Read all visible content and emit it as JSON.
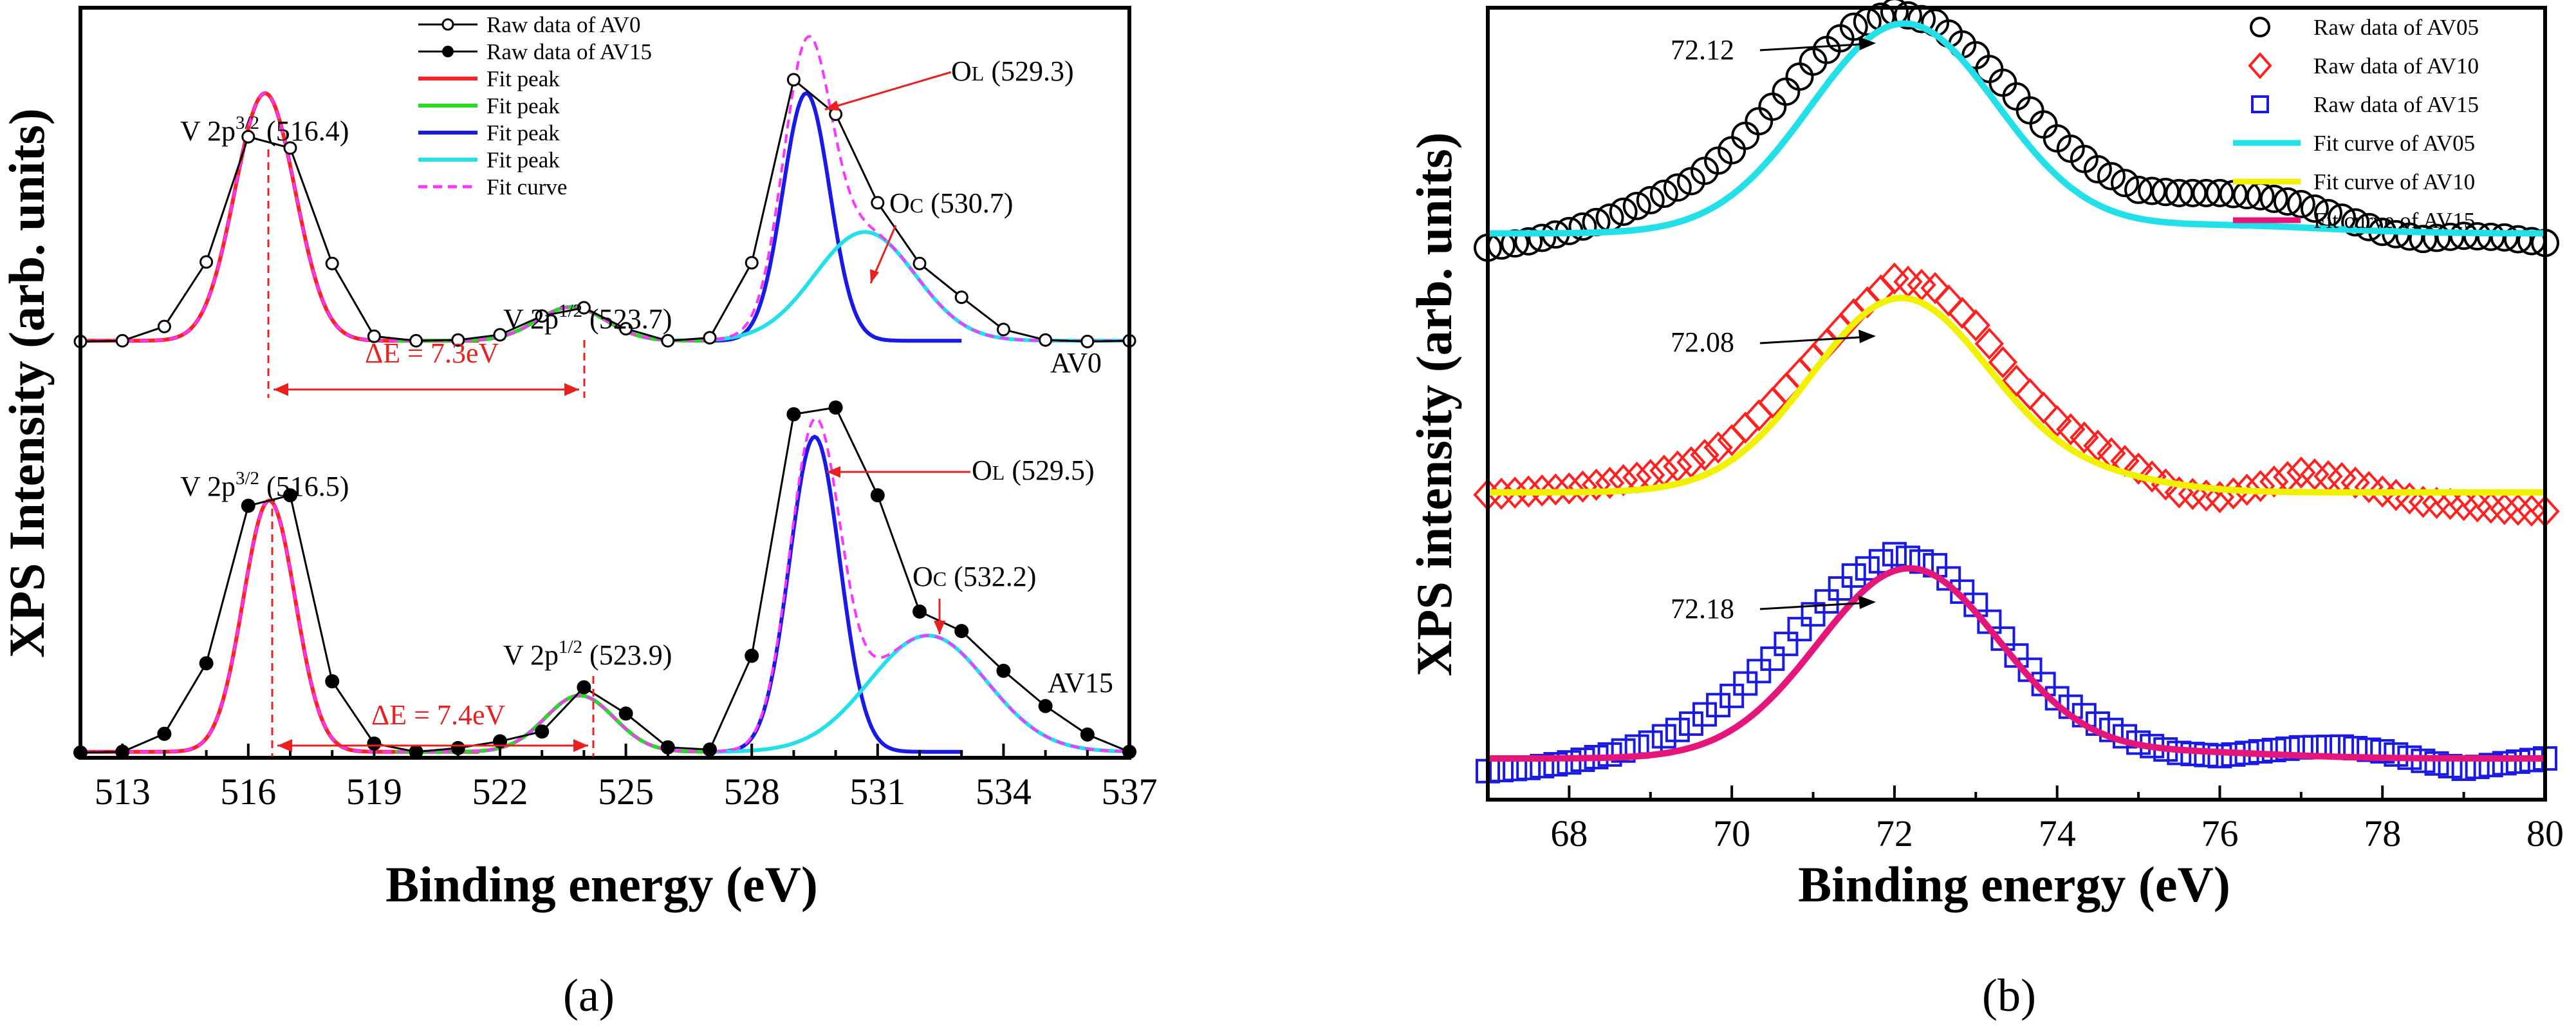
{
  "panel_labels": {
    "a": "(a)",
    "b": "(b)"
  },
  "colors": {
    "red": "#ff2020",
    "green": "#22dd22",
    "blue": "#1a1ae6",
    "cyan": "#22e0e8",
    "magenta": "#ff33ff",
    "yellow": "#f2f200",
    "pink": "#e6157a",
    "ann_red": "#e82020"
  },
  "chart_data": [
    {
      "id": "a",
      "type": "line",
      "title": "",
      "xlabel": "Binding energy (eV)",
      "ylabel": "XPS Intensity (arb. units)",
      "xlim": [
        512,
        537
      ],
      "ylim": [
        0,
        1
      ],
      "x_ticks": [
        513,
        516,
        519,
        522,
        525,
        528,
        531,
        534,
        537
      ],
      "legend": {
        "position": "top-center",
        "entries": [
          {
            "label": "Raw data of AV0",
            "style": "open-circle-line",
            "color": "#000000"
          },
          {
            "label": "Raw data of AV15",
            "style": "filled-circle-line",
            "color": "#000000"
          },
          {
            "label": "Fit peak",
            "style": "line",
            "color": "#ff2020"
          },
          {
            "label": "Fit peak",
            "style": "line",
            "color": "#22dd22"
          },
          {
            "label": "Fit peak",
            "style": "line",
            "color": "#1a1ae6"
          },
          {
            "label": "Fit peak",
            "style": "line",
            "color": "#22e0e8"
          },
          {
            "label": "Fit curve",
            "style": "dashed",
            "color": "#ff33ff"
          }
        ]
      },
      "series": [
        {
          "name": "Raw data of AV0",
          "marker": "open-circle",
          "x": [
            512,
            513,
            514,
            515,
            516,
            517,
            518,
            519,
            520,
            521,
            522,
            523,
            524,
            525,
            526,
            527,
            528,
            529,
            530,
            531,
            532,
            533,
            534,
            535,
            536,
            537
          ],
          "values": [
            0.555,
            0.556,
            0.575,
            0.661,
            0.828,
            0.813,
            0.659,
            0.562,
            0.556,
            0.557,
            0.564,
            0.589,
            0.6,
            0.572,
            0.556,
            0.56,
            0.66,
            0.904,
            0.858,
            0.74,
            0.659,
            0.614,
            0.571,
            0.557,
            0.555,
            0.556
          ]
        },
        {
          "name": "Raw data of AV15",
          "marker": "filled-circle",
          "x": [
            512,
            513,
            514,
            515,
            516,
            517,
            518,
            519,
            520,
            521,
            522,
            523,
            524,
            525,
            526,
            527,
            528,
            529,
            530,
            531,
            532,
            533,
            534,
            535,
            536,
            537
          ],
          "values": [
            0.007,
            0.008,
            0.032,
            0.126,
            0.336,
            0.35,
            0.102,
            0.019,
            0.008,
            0.013,
            0.022,
            0.035,
            0.094,
            0.059,
            0.014,
            0.011,
            0.136,
            0.458,
            0.467,
            0.35,
            0.195,
            0.169,
            0.116,
            0.069,
            0.031,
            0.008
          ]
        },
        {
          "name": "Fit curves AV0",
          "baseline": 0.556,
          "peaks": [
            {
              "center": 516.4,
              "sigma": 0.72,
              "amplitude": 0.33,
              "color": "#ff2020"
            },
            {
              "center": 523.7,
              "sigma": 0.82,
              "amplitude": 0.045,
              "color": "#22dd22"
            },
            {
              "center": 529.3,
              "sigma": 0.56,
              "amplitude": 0.33,
              "color": "#1a1ae6"
            },
            {
              "center": 530.7,
              "sigma": 1.2,
              "amplitude": 0.145,
              "color": "#22e0e8"
            }
          ]
        },
        {
          "name": "Fit curves AV15",
          "baseline": 0.008,
          "peaks": [
            {
              "center": 516.5,
              "sigma": 0.62,
              "amplitude": 0.335,
              "color": "#ff2020"
            },
            {
              "center": 523.9,
              "sigma": 0.82,
              "amplitude": 0.075,
              "color": "#22dd22"
            },
            {
              "center": 529.5,
              "sigma": 0.6,
              "amplitude": 0.42,
              "color": "#1a1ae6"
            },
            {
              "center": 532.2,
              "sigma": 1.4,
              "amplitude": 0.155,
              "color": "#22e0e8"
            }
          ]
        }
      ],
      "annotations": [
        {
          "text": "V 2p",
          "sup": "3/2",
          "tail": " (516.4)"
        },
        {
          "text": "V 2p",
          "sup": "1/2",
          "tail": " (523.7)"
        },
        {
          "text": "O",
          "sub": "L",
          "tail": " (529.3)"
        },
        {
          "text": "O",
          "sub": "C",
          "tail": " (530.7)"
        },
        {
          "text": "ΔE = 7.3eV"
        },
        {
          "text": "AV0"
        },
        {
          "text": "V 2p",
          "sup": "3/2",
          "tail": " (516.5)"
        },
        {
          "text": "V 2p",
          "sup": "1/2",
          "tail": " (523.9)"
        },
        {
          "text": "O",
          "sub": "L",
          "tail": " (529.5)"
        },
        {
          "text": "O",
          "sub": "C",
          "tail": " (532.2)"
        },
        {
          "text": "ΔE = 7.4eV"
        },
        {
          "text": "AV15"
        }
      ]
    },
    {
      "id": "b",
      "type": "line",
      "title": "",
      "xlabel": "Binding energy (eV)",
      "ylabel": "XPS intensity (arb. units)",
      "xlim": [
        67,
        80
      ],
      "ylim": [
        0,
        1
      ],
      "x_ticks": [
        68,
        70,
        72,
        74,
        76,
        78,
        80
      ],
      "legend": {
        "position": "top-right",
        "entries": [
          {
            "label": "Raw data of AV05",
            "style": "open-circle",
            "color": "#000000"
          },
          {
            "label": "Raw data of AV10",
            "style": "open-diamond",
            "color": "#ff2020"
          },
          {
            "label": "Raw data of AV15",
            "style": "open-square",
            "color": "#1a1ae6"
          },
          {
            "label": "Fit curve of AV05",
            "style": "line",
            "color": "#22e0e8"
          },
          {
            "label": "Fit curve of AV10",
            "style": "line",
            "color": "#f2f200"
          },
          {
            "label": "Fit curve of AV15",
            "style": "line",
            "color": "#e6157a"
          }
        ]
      },
      "series": [
        {
          "name": "Raw data of AV05",
          "marker": "open-circle",
          "x": [
            67.0,
            67.5,
            68.0,
            68.5,
            69.0,
            69.5,
            70.0,
            70.5,
            71.0,
            71.5,
            72.0,
            72.5,
            73.0,
            73.5,
            74.0,
            74.5,
            75.0,
            75.5,
            76.0,
            76.5,
            77.0,
            77.5,
            78.0,
            78.5,
            79.0,
            79.5,
            80.0
          ],
          "values": [
            0.697,
            0.705,
            0.718,
            0.735,
            0.757,
            0.781,
            0.82,
            0.875,
            0.932,
            0.976,
            0.995,
            0.981,
            0.94,
            0.888,
            0.835,
            0.796,
            0.77,
            0.766,
            0.766,
            0.762,
            0.752,
            0.735,
            0.717,
            0.708,
            0.712,
            0.71,
            0.703
          ]
        },
        {
          "name": "Raw data of AV10",
          "marker": "open-diamond",
          "x": [
            67.0,
            67.5,
            68.0,
            68.5,
            69.0,
            69.5,
            70.0,
            70.5,
            71.0,
            71.5,
            72.0,
            72.5,
            73.0,
            73.5,
            74.0,
            74.5,
            75.0,
            75.5,
            76.0,
            76.5,
            77.0,
            77.5,
            78.0,
            78.5,
            79.0,
            79.5,
            80.0
          ],
          "values": [
            0.385,
            0.389,
            0.393,
            0.4,
            0.41,
            0.426,
            0.454,
            0.501,
            0.556,
            0.613,
            0.658,
            0.646,
            0.599,
            0.529,
            0.478,
            0.447,
            0.418,
            0.388,
            0.382,
            0.396,
            0.413,
            0.406,
            0.389,
            0.376,
            0.372,
            0.367,
            0.364
          ]
        },
        {
          "name": "Raw data of AV15",
          "marker": "open-square",
          "x": [
            67.0,
            67.5,
            68.0,
            68.5,
            69.0,
            69.5,
            70.0,
            70.5,
            71.0,
            71.5,
            72.0,
            72.5,
            73.0,
            73.5,
            74.0,
            74.5,
            75.0,
            75.5,
            76.0,
            76.5,
            77.0,
            77.5,
            78.0,
            78.5,
            79.0,
            79.5,
            80.0
          ],
          "values": [
            0.036,
            0.04,
            0.047,
            0.057,
            0.072,
            0.096,
            0.131,
            0.178,
            0.234,
            0.283,
            0.31,
            0.296,
            0.246,
            0.182,
            0.128,
            0.096,
            0.072,
            0.059,
            0.055,
            0.061,
            0.066,
            0.067,
            0.061,
            0.049,
            0.039,
            0.046,
            0.052
          ]
        },
        {
          "name": "Fit curve of AV05",
          "color": "#22e0e8",
          "baseline": 0.715,
          "peaks": [
            {
              "center": 72.12,
              "sigma": 1.15,
              "amplitude": 0.265
            }
          ],
          "tail": {
            "center": 76.0,
            "sigma": 1.3,
            "amplitude": 0.01
          }
        },
        {
          "name": "Fit curve of AV10",
          "color": "#f2f200",
          "baseline": 0.388,
          "peaks": [
            {
              "center": 72.08,
              "sigma": 1.1,
              "amplitude": 0.245
            }
          ],
          "tail": {
            "center": 74.5,
            "sigma": 0.9,
            "amplitude": 0.015
          }
        },
        {
          "name": "Fit curve of AV15",
          "color": "#e6157a",
          "baseline": 0.052,
          "peaks": [
            {
              "center": 72.18,
              "sigma": 1.12,
              "amplitude": 0.24
            }
          ],
          "tail": {
            "center": 75.5,
            "sigma": 1.2,
            "amplitude": 0.008
          }
        }
      ],
      "annotations": [
        {
          "text": "72.12"
        },
        {
          "text": "72.08"
        },
        {
          "text": "72.18"
        }
      ]
    }
  ]
}
